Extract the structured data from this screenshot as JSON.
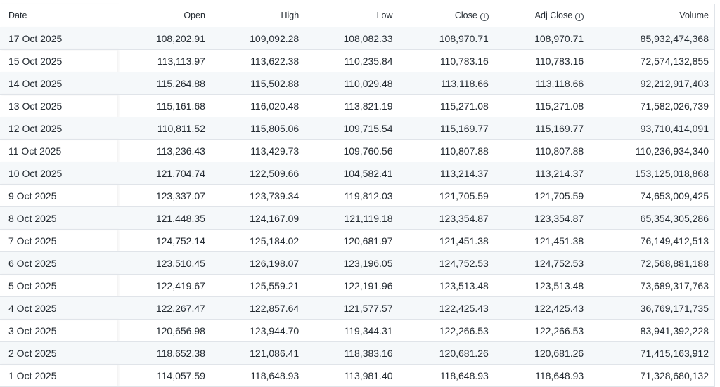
{
  "headers": {
    "date": "Date",
    "open": "Open",
    "high": "High",
    "low": "Low",
    "close": "Close",
    "adj_close": "Adj Close",
    "volume": "Volume"
  },
  "icons": {
    "close_info": "info-icon",
    "adj_close_info": "info-icon"
  },
  "rows": [
    {
      "date": "17 Oct 2025",
      "open": "108,202.91",
      "high": "109,092.28",
      "low": "108,082.33",
      "close": "108,970.71",
      "adj_close": "108,970.71",
      "volume": "85,932,474,368"
    },
    {
      "date": "15 Oct 2025",
      "open": "113,113.97",
      "high": "113,622.38",
      "low": "110,235.84",
      "close": "110,783.16",
      "adj_close": "110,783.16",
      "volume": "72,574,132,855"
    },
    {
      "date": "14 Oct 2025",
      "open": "115,264.88",
      "high": "115,502.88",
      "low": "110,029.48",
      "close": "113,118.66",
      "adj_close": "113,118.66",
      "volume": "92,212,917,403"
    },
    {
      "date": "13 Oct 2025",
      "open": "115,161.68",
      "high": "116,020.48",
      "low": "113,821.19",
      "close": "115,271.08",
      "adj_close": "115,271.08",
      "volume": "71,582,026,739"
    },
    {
      "date": "12 Oct 2025",
      "open": "110,811.52",
      "high": "115,805.06",
      "low": "109,715.54",
      "close": "115,169.77",
      "adj_close": "115,169.77",
      "volume": "93,710,414,091"
    },
    {
      "date": "11 Oct 2025",
      "open": "113,236.43",
      "high": "113,429.73",
      "low": "109,760.56",
      "close": "110,807.88",
      "adj_close": "110,807.88",
      "volume": "110,236,934,340"
    },
    {
      "date": "10 Oct 2025",
      "open": "121,704.74",
      "high": "122,509.66",
      "low": "104,582.41",
      "close": "113,214.37",
      "adj_close": "113,214.37",
      "volume": "153,125,018,868"
    },
    {
      "date": "9 Oct 2025",
      "open": "123,337.07",
      "high": "123,739.34",
      "low": "119,812.03",
      "close": "121,705.59",
      "adj_close": "121,705.59",
      "volume": "74,653,009,425"
    },
    {
      "date": "8 Oct 2025",
      "open": "121,448.35",
      "high": "124,167.09",
      "low": "121,119.18",
      "close": "123,354.87",
      "adj_close": "123,354.87",
      "volume": "65,354,305,286"
    },
    {
      "date": "7 Oct 2025",
      "open": "124,752.14",
      "high": "125,184.02",
      "low": "120,681.97",
      "close": "121,451.38",
      "adj_close": "121,451.38",
      "volume": "76,149,412,513"
    },
    {
      "date": "6 Oct 2025",
      "open": "123,510.45",
      "high": "126,198.07",
      "low": "123,196.05",
      "close": "124,752.53",
      "adj_close": "124,752.53",
      "volume": "72,568,881,188"
    },
    {
      "date": "5 Oct 2025",
      "open": "122,419.67",
      "high": "125,559.21",
      "low": "122,191.96",
      "close": "123,513.48",
      "adj_close": "123,513.48",
      "volume": "73,689,317,763"
    },
    {
      "date": "4 Oct 2025",
      "open": "122,267.47",
      "high": "122,857.64",
      "low": "121,577.57",
      "close": "122,425.43",
      "adj_close": "122,425.43",
      "volume": "36,769,171,735"
    },
    {
      "date": "3 Oct 2025",
      "open": "120,656.98",
      "high": "123,944.70",
      "low": "119,344.31",
      "close": "122,266.53",
      "adj_close": "122,266.53",
      "volume": "83,941,392,228"
    },
    {
      "date": "2 Oct 2025",
      "open": "118,652.38",
      "high": "121,086.41",
      "low": "118,383.16",
      "close": "120,681.26",
      "adj_close": "120,681.26",
      "volume": "71,415,163,912"
    },
    {
      "date": "1 Oct 2025",
      "open": "114,057.59",
      "high": "118,648.93",
      "low": "113,981.40",
      "close": "118,648.93",
      "adj_close": "118,648.93",
      "volume": "71,328,680,132"
    }
  ],
  "colors": {
    "row_alt": "#f5f8fa",
    "border": "#e0e4e9",
    "text": "#232a31"
  }
}
